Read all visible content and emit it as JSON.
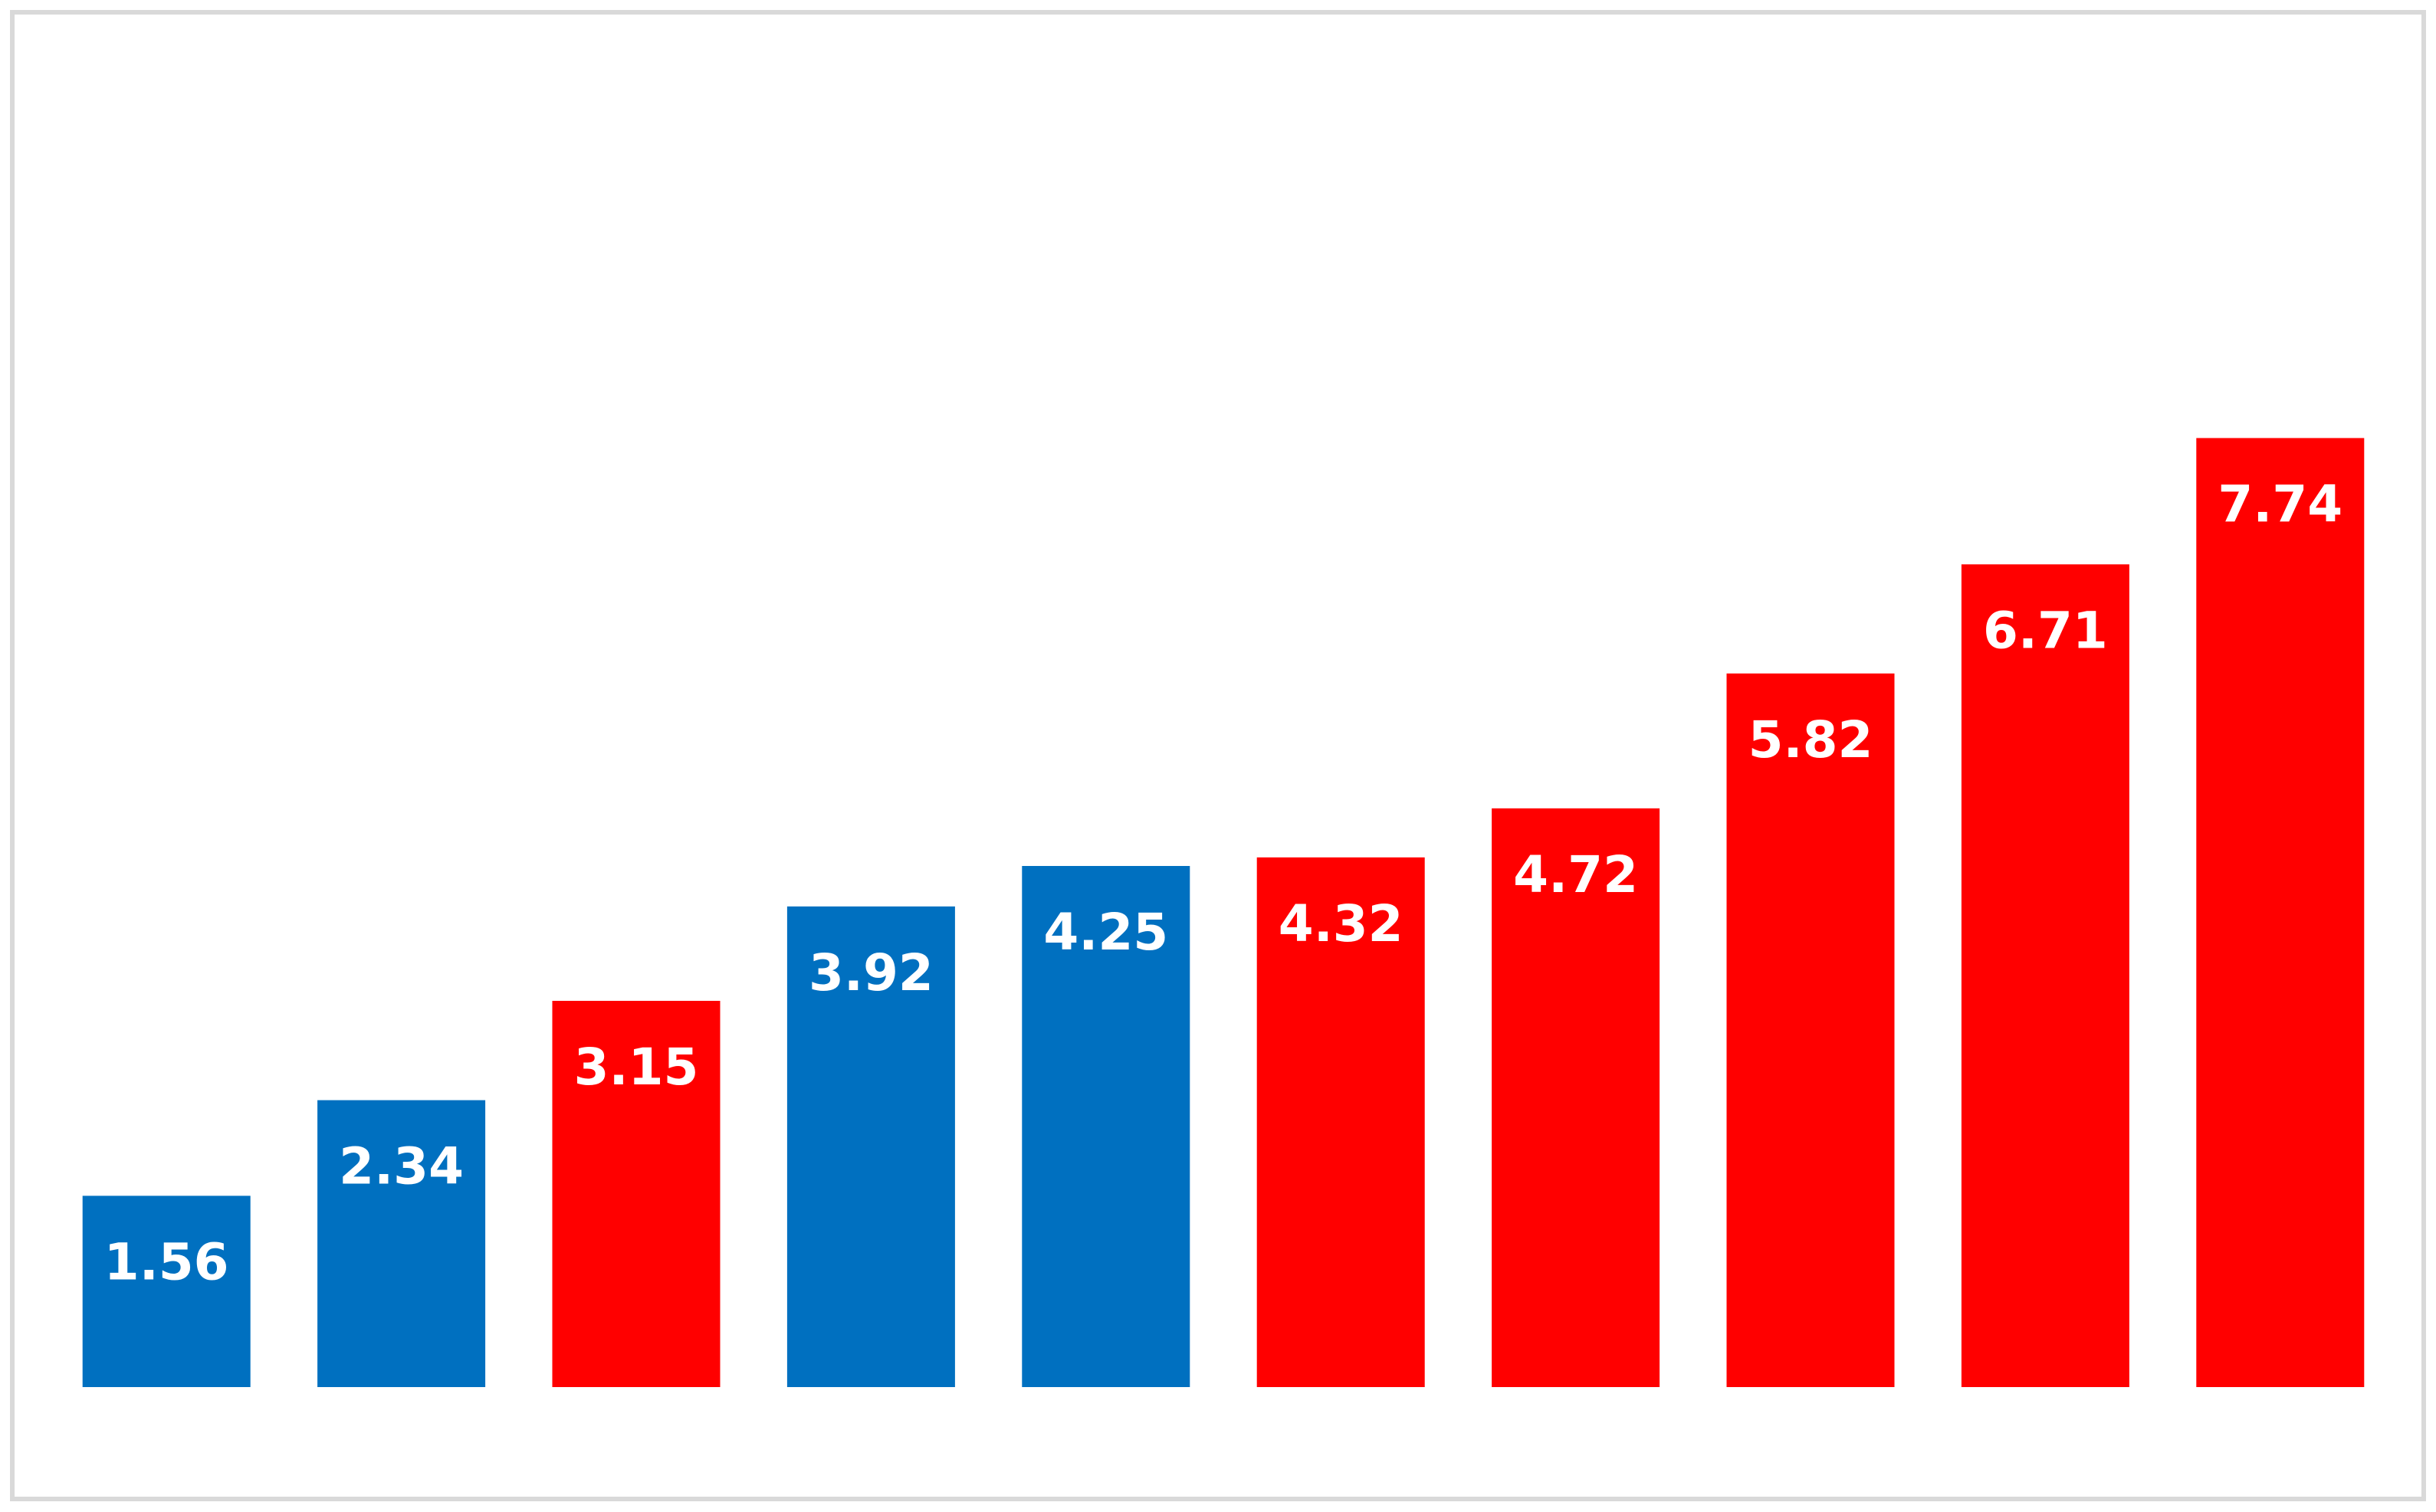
{
  "chart_data": {
    "type": "bar",
    "categories": [
      null,
      null,
      null,
      null,
      null,
      null,
      null,
      null,
      null,
      null
    ],
    "values": [
      1.56,
      2.34,
      3.15,
      3.92,
      4.25,
      4.32,
      4.72,
      5.82,
      6.71,
      7.74
    ],
    "colors": [
      "#0070c0",
      "#0070c0",
      "#ff0000",
      "#0070c0",
      "#0070c0",
      "#ff0000",
      "#ff0000",
      "#ff0000",
      "#ff0000",
      "#ff0000"
    ],
    "ylim": [
      0,
      9
    ]
  }
}
